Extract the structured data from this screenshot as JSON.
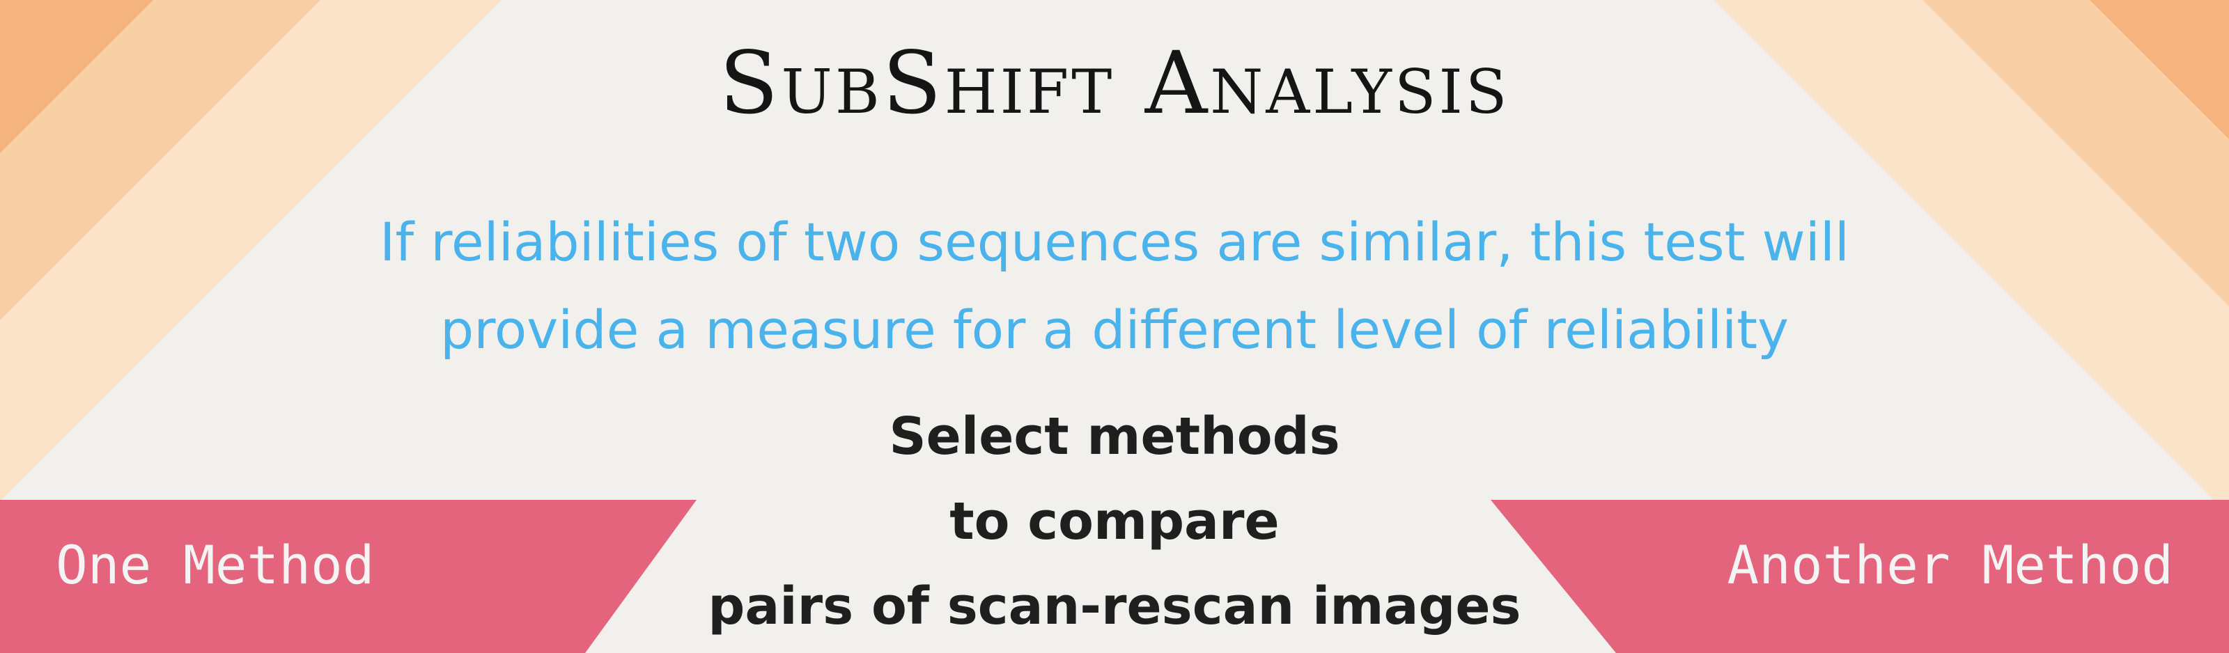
{
  "page": {
    "title": "SubShift Analysis",
    "description_line1": "If reliabilities of two sequences are similar, this test  will",
    "description_line2": "provide a measure for a different level of reliability",
    "prompt_lines": [
      "Select methods",
      "to compare",
      "pairs of scan-rescan images"
    ]
  },
  "methods": {
    "left_label": "One Method",
    "right_label": "Another Method"
  },
  "colors": {
    "background": "#f1f0ed",
    "orange_dark": "#f5b37e",
    "orange_mid": "#f8c89c",
    "orange_light": "#fbe0c4",
    "pink_button": "#e4647e",
    "title_text": "#151515",
    "description_text": "#4bb3ec",
    "prompt_text": "#1f1f1f",
    "button_text": "#f4f4f4"
  }
}
